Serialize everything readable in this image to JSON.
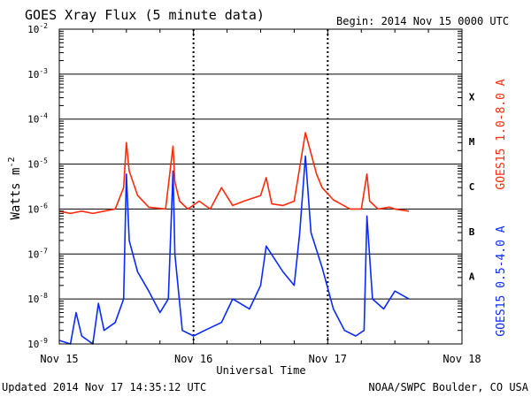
{
  "chart_data": {
    "type": "line",
    "title": "GOES Xray Flux (5 minute data)",
    "begin": "Begin:  2014 Nov 15 0000 UTC",
    "ylabel": "Watts m",
    "ylabel_sup": "-2",
    "xlabel": "Universal Time",
    "footer_left": "Updated 2014 Nov 17 14:35:12 UTC",
    "footer_right": "NOAA/SWPC Boulder, CO USA",
    "x_ticks": [
      "Nov 15",
      "Nov 16",
      "Nov 17",
      "Nov 18"
    ],
    "xlim": [
      "2014-11-15T00:00",
      "2014-11-18T00:00"
    ],
    "y_scale": "log",
    "ylim": [
      1e-09,
      0.01
    ],
    "y_ticks": [
      {
        "base": "10",
        "exp": "-9"
      },
      {
        "base": "10",
        "exp": "-8"
      },
      {
        "base": "10",
        "exp": "-7"
      },
      {
        "base": "10",
        "exp": "-6"
      },
      {
        "base": "10",
        "exp": "-5"
      },
      {
        "base": "10",
        "exp": "-4"
      },
      {
        "base": "10",
        "exp": "-3"
      },
      {
        "base": "10",
        "exp": "-2"
      }
    ],
    "flare_classes": [
      "A",
      "B",
      "C",
      "M",
      "X"
    ],
    "grid": true,
    "series": [
      {
        "name": "GOES15 1.0-8.0 A",
        "color": "#ff2a0a",
        "x": [
          "2014-11-15T00:00",
          "2014-11-15T02:00",
          "2014-11-15T04:00",
          "2014-11-15T06:00",
          "2014-11-15T08:00",
          "2014-11-15T10:00",
          "2014-11-15T11:30",
          "2014-11-15T12:00",
          "2014-11-15T12:30",
          "2014-11-15T14:00",
          "2014-11-15T16:00",
          "2014-11-15T19:00",
          "2014-11-15T20:20",
          "2014-11-15T20:40",
          "2014-11-15T21:30",
          "2014-11-15T23:00",
          "2014-11-16T01:00",
          "2014-11-16T03:00",
          "2014-11-16T05:00",
          "2014-11-16T07:00",
          "2014-11-16T09:00",
          "2014-11-16T12:00",
          "2014-11-16T13:00",
          "2014-11-16T14:00",
          "2014-11-16T16:00",
          "2014-11-16T18:00",
          "2014-11-16T20:00",
          "2014-11-16T22:00",
          "2014-11-16T23:00",
          "2014-11-17T01:00",
          "2014-11-17T04:00",
          "2014-11-17T06:00",
          "2014-11-17T07:00",
          "2014-11-17T07:30",
          "2014-11-17T09:00",
          "2014-11-17T11:00",
          "2014-11-17T12:00",
          "2014-11-17T14:30"
        ],
        "values": [
          9e-07,
          8e-07,
          9e-07,
          8e-07,
          9e-07,
          1e-06,
          3e-06,
          3e-05,
          7e-06,
          2e-06,
          1.1e-06,
          1e-06,
          2.5e-05,
          4e-06,
          1.5e-06,
          1e-06,
          1.5e-06,
          1e-06,
          3e-06,
          1.2e-06,
          1.5e-06,
          2e-06,
          5e-06,
          1.3e-06,
          1.2e-06,
          1.5e-06,
          5e-05,
          6e-06,
          3e-06,
          1.6e-06,
          1e-06,
          1e-06,
          6e-06,
          1.5e-06,
          1e-06,
          1.1e-06,
          1e-06,
          9e-07
        ]
      },
      {
        "name": "GOES15 0.5-4.0 A",
        "color": "#0a2aff",
        "x": [
          "2014-11-15T00:00",
          "2014-11-15T02:00",
          "2014-11-15T03:00",
          "2014-11-15T04:00",
          "2014-11-15T06:00",
          "2014-11-15T07:00",
          "2014-11-15T08:00",
          "2014-11-15T10:00",
          "2014-11-15T11:30",
          "2014-11-15T12:00",
          "2014-11-15T12:30",
          "2014-11-15T14:00",
          "2014-11-15T16:00",
          "2014-11-15T18:00",
          "2014-11-15T19:30",
          "2014-11-15T20:20",
          "2014-11-15T20:40",
          "2014-11-15T22:00",
          "2014-11-16T00:00",
          "2014-11-16T02:00",
          "2014-11-16T05:00",
          "2014-11-16T07:00",
          "2014-11-16T10:00",
          "2014-11-16T12:00",
          "2014-11-16T13:00",
          "2014-11-16T16:00",
          "2014-11-16T18:00",
          "2014-11-16T19:00",
          "2014-11-16T20:00",
          "2014-11-16T21:00",
          "2014-11-16T23:00",
          "2014-11-17T01:00",
          "2014-11-17T03:00",
          "2014-11-17T05:00",
          "2014-11-17T06:30",
          "2014-11-17T07:00",
          "2014-11-17T08:00",
          "2014-11-17T10:00",
          "2014-11-17T12:00",
          "2014-11-17T14:30"
        ],
        "values": [
          1.2e-09,
          1e-09,
          5e-09,
          1.5e-09,
          1e-09,
          8e-09,
          2e-09,
          3e-09,
          1e-08,
          6e-06,
          2e-07,
          4e-08,
          1.5e-08,
          5e-09,
          1e-08,
          7e-06,
          1e-07,
          2e-09,
          1.5e-09,
          2e-09,
          3e-09,
          1e-08,
          6e-09,
          2e-08,
          1.5e-07,
          4e-08,
          2e-08,
          3e-07,
          1.5e-05,
          3e-07,
          5e-08,
          6e-09,
          2e-09,
          1.5e-09,
          2e-09,
          7e-07,
          1e-08,
          6e-09,
          1.5e-08,
          1e-08
        ]
      }
    ]
  }
}
